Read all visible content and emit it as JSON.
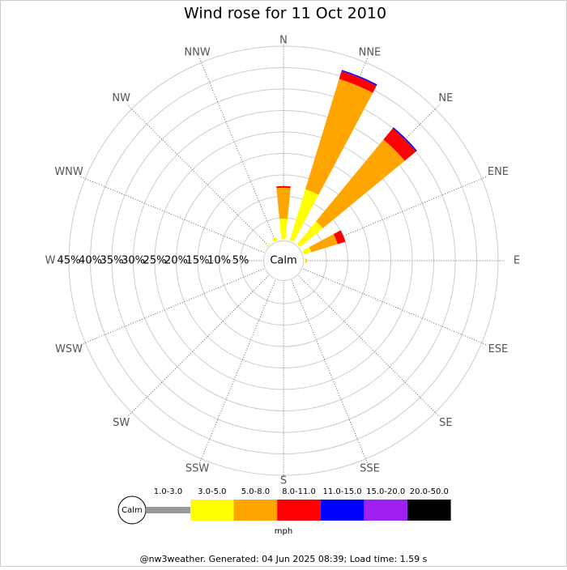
{
  "chart_data": {
    "type": "windrose",
    "title": "Wind rose for 11 Oct 2010",
    "categories": [
      "N",
      "NNE",
      "NE",
      "ENE",
      "E",
      "ESE",
      "SE",
      "SSE",
      "S",
      "SSW",
      "SW",
      "WSW",
      "W",
      "WNW",
      "NW",
      "NNW"
    ],
    "series": [
      {
        "name": "1.0-3.0",
        "color": "#999999",
        "values": [
          0,
          0,
          0,
          0,
          0,
          0,
          0,
          0,
          0,
          0,
          0,
          0,
          0,
          0,
          0,
          0
        ]
      },
      {
        "name": "3.0-5.0",
        "color": "#ffff00",
        "values": [
          4.8,
          12.4,
          6.9,
          1.8,
          0.2,
          0,
          0,
          0,
          0,
          0,
          0,
          0,
          0,
          0,
          0.3,
          0.7
        ]
      },
      {
        "name": "5.0-8.0",
        "color": "#ffa500",
        "values": [
          7.2,
          26.9,
          24.7,
          6.4,
          0.2,
          0,
          0,
          0,
          0,
          0,
          0,
          0,
          0,
          0,
          0,
          0
        ]
      },
      {
        "name": "8.0-11.0",
        "color": "#ff0000",
        "values": [
          0.4,
          1.9,
          3.4,
          1.9,
          0,
          0,
          0,
          0,
          0,
          0,
          0,
          0,
          0,
          0,
          0,
          0
        ]
      },
      {
        "name": "11.0-15.0",
        "color": "#0000ff",
        "values": [
          0,
          0.3,
          0.3,
          0,
          0,
          0,
          0,
          0,
          0,
          0,
          0,
          0,
          0,
          0,
          0,
          0
        ]
      },
      {
        "name": "15.0-20.0",
        "color": "#a020f0",
        "values": [
          0,
          0,
          0,
          0,
          0,
          0,
          0,
          0,
          0,
          0,
          0,
          0,
          0,
          0,
          0,
          0
        ]
      },
      {
        "name": "20.0-50.0",
        "color": "#000000",
        "values": [
          0,
          0,
          0,
          0,
          0,
          0,
          0,
          0,
          0,
          0,
          0,
          0,
          0,
          0,
          0,
          0
        ]
      }
    ],
    "ylim": [
      0,
      45
    ],
    "yticks": [
      {
        "value": 5,
        "label": "5%"
      },
      {
        "value": 10,
        "label": "10%"
      },
      {
        "value": 15,
        "label": "15%"
      },
      {
        "value": 20,
        "label": "20%"
      },
      {
        "value": 25,
        "label": "25%"
      },
      {
        "value": 30,
        "label": "30%"
      },
      {
        "value": 35,
        "label": "35%"
      },
      {
        "value": 40,
        "label": "40%"
      },
      {
        "value": 45,
        "label": "45%"
      }
    ],
    "calm_label": "Calm",
    "legend_title": "mph",
    "footer": "@nw3weather. Generated: 04 Jun 2025 08:39; Load time: 1.59 s"
  }
}
